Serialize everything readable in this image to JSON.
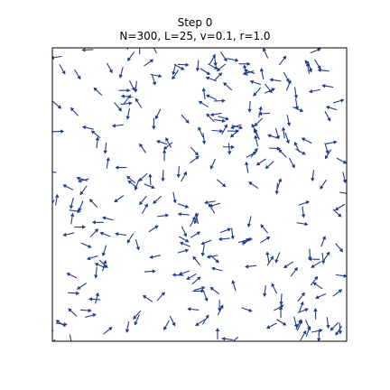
{
  "title": {
    "line1": "Step 0",
    "line2": "N=300, L=25, v=0.1, r=1.0"
  },
  "chart_data": {
    "type": "quiver",
    "title": "Step 0",
    "subtitle": "N=300, L=25, v=0.1, r=1.0",
    "xlim": [
      0,
      25
    ],
    "ylim": [
      0,
      25
    ],
    "axes_visible": false,
    "grid": false,
    "arrow_color": "#1f3c88",
    "particle_count": 300,
    "domain_size": 25,
    "speed": 0.1,
    "interaction_radius": 1.0,
    "random_seed": 7
  },
  "colors": {
    "background": "#ffffff",
    "frame": "#000000",
    "arrows": "#1f3c88"
  }
}
